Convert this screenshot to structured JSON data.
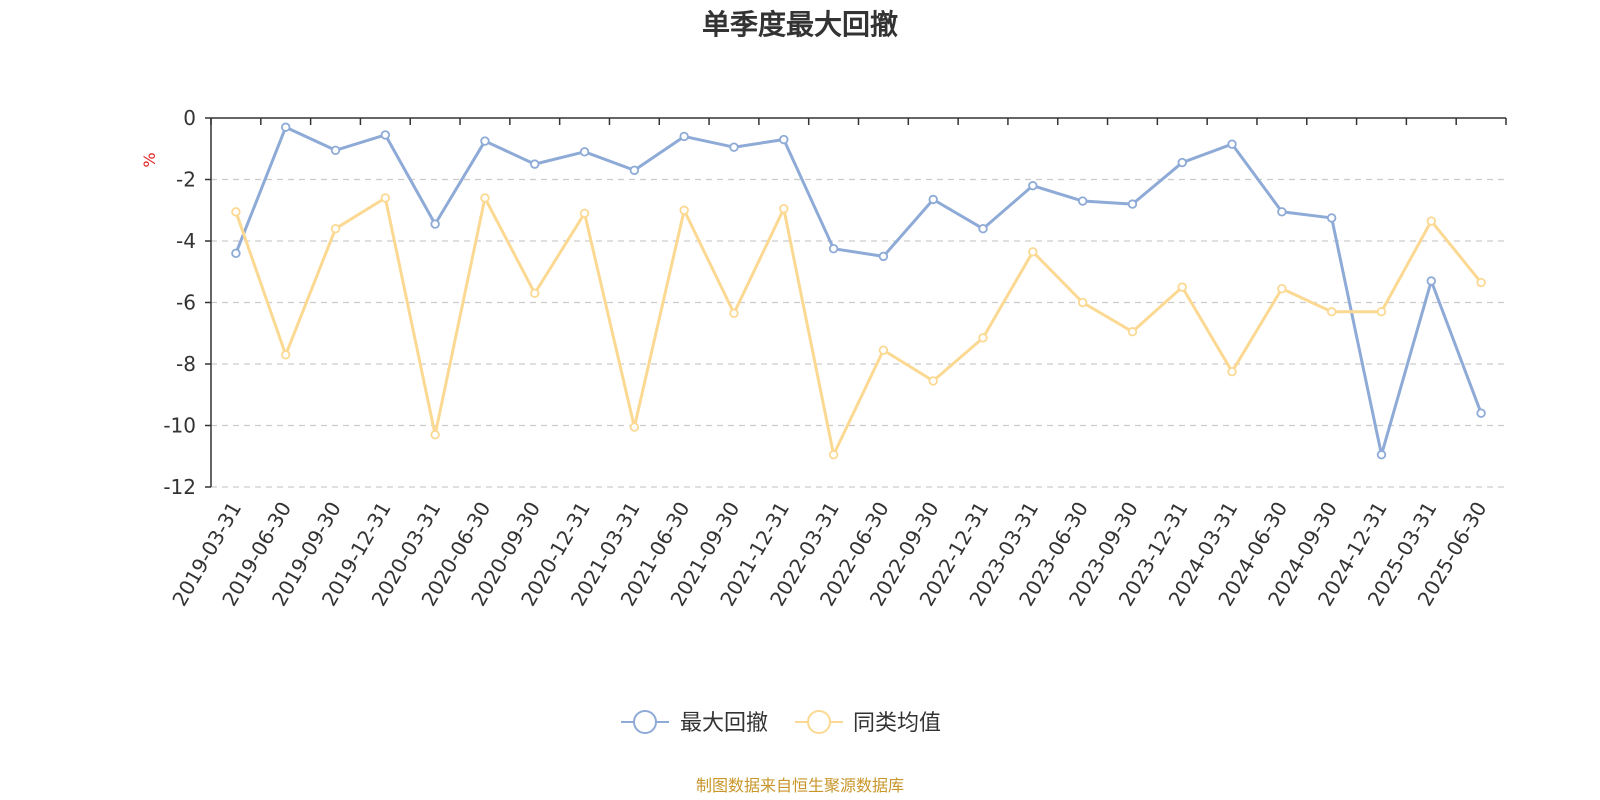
{
  "chart_data": {
    "type": "line",
    "title": "单季度最大回撤",
    "ylabel": "%",
    "xlabel": "",
    "ylim": [
      -12,
      0
    ],
    "yticks": [
      0,
      -2,
      -4,
      -6,
      -8,
      -10,
      -12
    ],
    "grid": true,
    "legend_position": "bottom-center",
    "categories": [
      "2019-03-31",
      "2019-06-30",
      "2019-09-30",
      "2019-12-31",
      "2020-03-31",
      "2020-06-30",
      "2020-09-30",
      "2020-12-31",
      "2021-03-31",
      "2021-06-30",
      "2021-09-30",
      "2021-12-31",
      "2022-03-31",
      "2022-06-30",
      "2022-09-30",
      "2022-12-31",
      "2023-03-31",
      "2023-06-30",
      "2023-09-30",
      "2023-12-31",
      "2024-03-31",
      "2024-06-30",
      "2024-09-30",
      "2024-12-31",
      "2025-03-31",
      "2025-06-30"
    ],
    "series": [
      {
        "name": "最大回撤",
        "color": "#8eaad6",
        "values": [
          -4.4,
          -0.3,
          -1.05,
          -0.55,
          -3.45,
          -0.75,
          -1.5,
          -1.1,
          -1.7,
          -0.6,
          -0.95,
          -0.7,
          -4.25,
          -4.5,
          -2.65,
          -3.6,
          -2.2,
          -2.7,
          -2.8,
          -1.45,
          -0.85,
          -3.05,
          -3.25,
          -10.95,
          -5.3,
          -9.6
        ]
      },
      {
        "name": "同类均值",
        "color": "#fbd993",
        "values": [
          -3.05,
          -7.7,
          -3.6,
          -2.6,
          -10.3,
          -2.6,
          -5.7,
          -3.1,
          -10.05,
          -3.0,
          -6.35,
          -2.95,
          -10.95,
          -7.55,
          -8.55,
          -7.15,
          -4.35,
          -6.0,
          -6.95,
          -5.5,
          -8.25,
          -5.55,
          -6.3,
          -6.3,
          -3.35,
          -5.35
        ]
      }
    ]
  },
  "source_text": "制图数据来自恒生聚源数据库"
}
